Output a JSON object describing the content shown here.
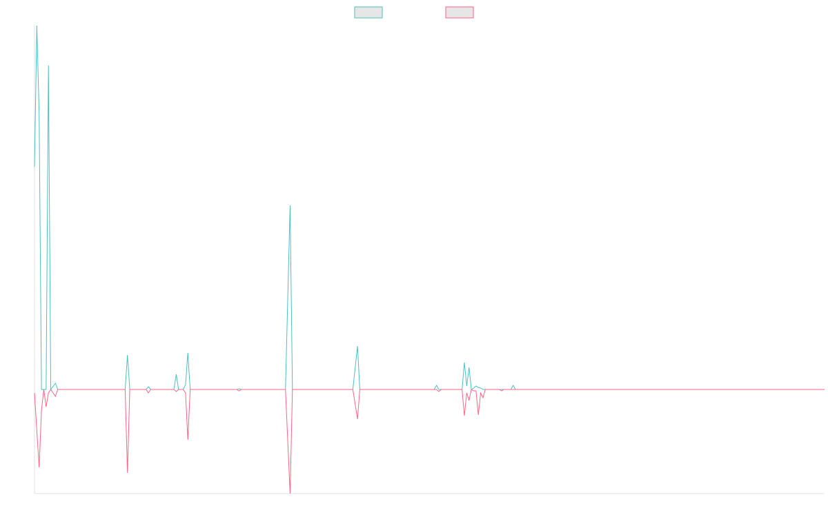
{
  "chart_data": {
    "type": "line",
    "x": [
      0,
      1,
      2,
      3,
      4,
      5,
      6,
      7,
      9,
      10,
      39,
      40,
      41,
      48,
      49,
      50,
      60,
      61,
      62,
      64,
      65,
      66,
      67,
      87,
      88,
      89,
      108,
      110,
      111,
      137,
      139,
      140,
      172,
      173,
      174,
      175,
      184,
      185,
      186,
      187,
      188,
      189,
      190,
      191,
      192,
      193,
      194,
      200,
      201,
      202,
      205,
      206,
      207,
      340
    ],
    "series": [
      {
        "color": "#4bc0c0",
        "values": [
          323,
          528,
          400,
          0,
          0,
          0,
          470,
          0,
          9,
          0,
          0,
          50,
          0,
          0,
          4,
          0,
          0,
          22,
          0,
          0,
          7,
          53,
          0,
          0,
          1,
          0,
          0,
          267,
          0,
          0,
          63,
          0,
          0,
          6,
          0,
          0,
          0,
          39,
          5,
          32,
          0,
          2,
          5,
          3,
          2,
          0,
          0,
          0,
          0,
          0,
          0,
          6,
          0,
          0
        ]
      },
      {
        "color": "#ff6384",
        "values": [
          -5,
          -60,
          -113,
          -30,
          0,
          -25,
          -5,
          0,
          -10,
          0,
          0,
          -121,
          0,
          0,
          -5,
          0,
          0,
          -3,
          0,
          0,
          -5,
          -73,
          0,
          0,
          -2,
          0,
          0,
          -151,
          0,
          0,
          -43,
          0,
          0,
          0,
          -3,
          0,
          0,
          -38,
          -5,
          -16,
          0,
          -2,
          -2,
          -37,
          -5,
          -12,
          0,
          0,
          -2,
          0,
          0,
          0,
          0,
          0
        ]
      }
    ],
    "xlim": [
      0,
      340
    ],
    "ylim": [
      -151,
      528
    ],
    "legend": "top"
  }
}
